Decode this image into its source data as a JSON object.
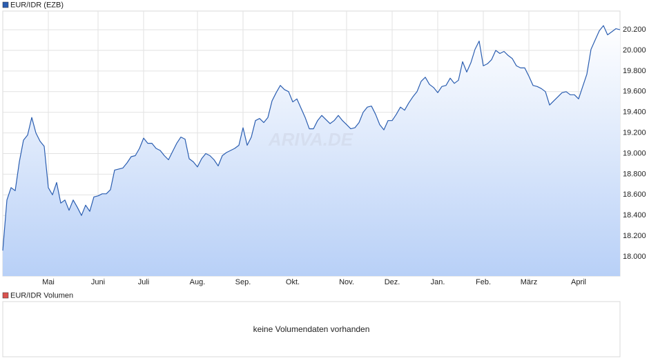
{
  "chart_data": {
    "type": "area",
    "legend": "EUR/IDR (EZB)",
    "watermark": "ARIVA.DE",
    "color": "#2a5db0",
    "volume_legend": "EUR/IDR Volumen",
    "volume_legend_color": "#d9534f",
    "volume_message": "keine Volumendaten vorhanden",
    "grid": true,
    "ylim": [
      17813,
      20381
    ],
    "yticks": [
      {
        "value": 18000,
        "label": "18.000"
      },
      {
        "value": 18200,
        "label": "18.200"
      },
      {
        "value": 18400,
        "label": "18.400"
      },
      {
        "value": 18600,
        "label": "18.600"
      },
      {
        "value": 18800,
        "label": "18.800"
      },
      {
        "value": 19000,
        "label": "19.000"
      },
      {
        "value": 19200,
        "label": "19.200"
      },
      {
        "value": 19400,
        "label": "19.400"
      },
      {
        "value": 19600,
        "label": "19.600"
      },
      {
        "value": 19800,
        "label": "19.800"
      },
      {
        "value": 20000,
        "label": "20.000"
      },
      {
        "value": 20200,
        "label": "20.200"
      }
    ],
    "categories": [
      null,
      null,
      null,
      null,
      null,
      null,
      null,
      null,
      null,
      null,
      null,
      "Mai",
      null,
      null,
      null,
      null,
      null,
      null,
      null,
      null,
      null,
      null,
      null,
      "Juni",
      null,
      null,
      null,
      null,
      null,
      null,
      null,
      null,
      null,
      null,
      "Juli",
      null,
      null,
      null,
      null,
      null,
      null,
      null,
      null,
      null,
      null,
      null,
      null,
      "Aug.",
      null,
      null,
      null,
      null,
      null,
      null,
      null,
      null,
      null,
      null,
      "Sep.",
      null,
      null,
      null,
      null,
      null,
      null,
      null,
      null,
      null,
      null,
      null,
      "Okt.",
      null,
      null,
      null,
      null,
      null,
      null,
      null,
      null,
      null,
      null,
      null,
      null,
      "Nov.",
      null,
      null,
      null,
      null,
      null,
      null,
      null,
      null,
      null,
      null,
      "Dez.",
      null,
      null,
      null,
      null,
      null,
      null,
      null,
      null,
      null,
      null,
      "Jan.",
      null,
      null,
      null,
      null,
      null,
      null,
      null,
      null,
      null,
      null,
      "Feb.",
      null,
      null,
      null,
      null,
      null,
      null,
      null,
      null,
      null,
      null,
      "März",
      null,
      null,
      null,
      null,
      null,
      null,
      null,
      null,
      null,
      null,
      null,
      "April",
      null,
      null,
      null,
      null,
      null,
      null,
      null,
      null,
      null,
      null
    ],
    "values": [
      18060,
      18550,
      18670,
      18640,
      18920,
      19130,
      19180,
      19350,
      19200,
      19120,
      19070,
      18670,
      18600,
      18720,
      18520,
      18550,
      18450,
      18550,
      18480,
      18400,
      18500,
      18440,
      18580,
      18590,
      18610,
      18610,
      18650,
      18840,
      18850,
      18860,
      18910,
      18970,
      18980,
      19050,
      19150,
      19100,
      19100,
      19050,
      19030,
      18980,
      18940,
      19020,
      19100,
      19160,
      19140,
      18950,
      18920,
      18870,
      18950,
      19000,
      18980,
      18940,
      18880,
      18980,
      19010,
      19030,
      19050,
      19080,
      19250,
      19080,
      19160,
      19320,
      19340,
      19300,
      19350,
      19510,
      19590,
      19660,
      19620,
      19600,
      19500,
      19530,
      19440,
      19350,
      19240,
      19240,
      19320,
      19370,
      19330,
      19290,
      19320,
      19370,
      19320,
      19280,
      19240,
      19250,
      19300,
      19400,
      19450,
      19460,
      19380,
      19280,
      19230,
      19320,
      19320,
      19380,
      19450,
      19420,
      19490,
      19550,
      19600,
      19700,
      19740,
      19670,
      19640,
      19590,
      19650,
      19660,
      19730,
      19680,
      19710,
      19890,
      19790,
      19880,
      20010,
      20090,
      19850,
      19870,
      19910,
      20000,
      19970,
      19990,
      19950,
      19920,
      19850,
      19830,
      19830,
      19750,
      19660,
      19650,
      19630,
      19600,
      19470,
      19510,
      19550,
      19590,
      19600,
      19570,
      19570,
      19530,
      19650,
      19770,
      20010,
      20100,
      20190,
      20240,
      20150,
      20180,
      20210,
      20200
    ]
  }
}
